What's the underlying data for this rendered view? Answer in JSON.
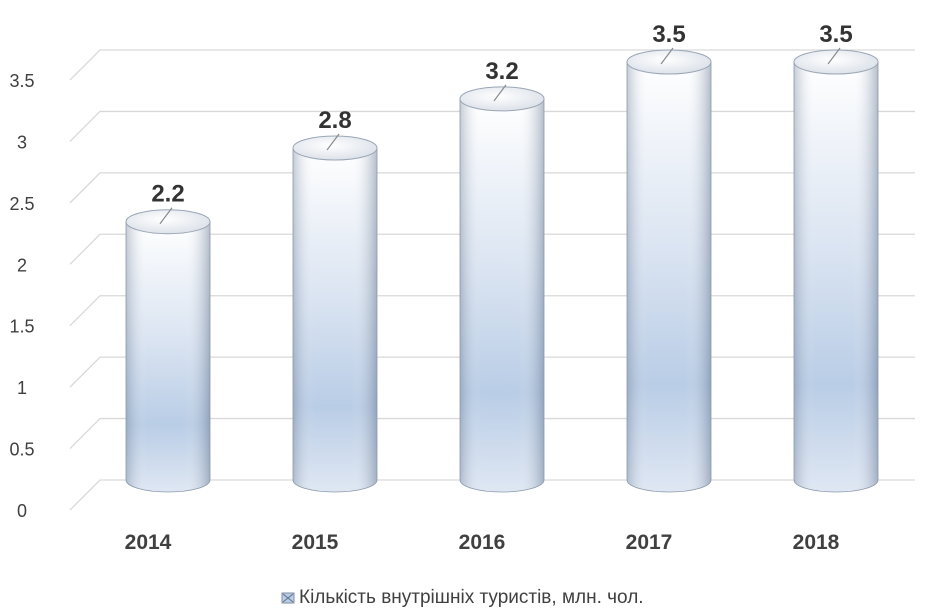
{
  "chart_data": {
    "type": "bar",
    "style": "3d-cylinder",
    "categories": [
      "2014",
      "2015",
      "2016",
      "2017",
      "2018"
    ],
    "series": [
      {
        "name": "Кількість внутрішніх туристів, млн. чол.",
        "values": [
          2.2,
          2.8,
          3.2,
          3.5,
          3.5
        ]
      }
    ],
    "data_labels": [
      "2.2",
      "2.8",
      "3.2",
      "3.5",
      "3.5"
    ],
    "yticks": [
      "0",
      "0.5",
      "1",
      "1.5",
      "2",
      "2.5",
      "3",
      "3.5"
    ],
    "ylim": [
      0,
      3.5
    ],
    "grid": true,
    "legend_position": "bottom",
    "colors": {
      "bar_top": "#ffffff",
      "bar_mid": "#b9cde6",
      "bar_bottom": "#dae4f1",
      "edge": "#8c99aa"
    }
  }
}
